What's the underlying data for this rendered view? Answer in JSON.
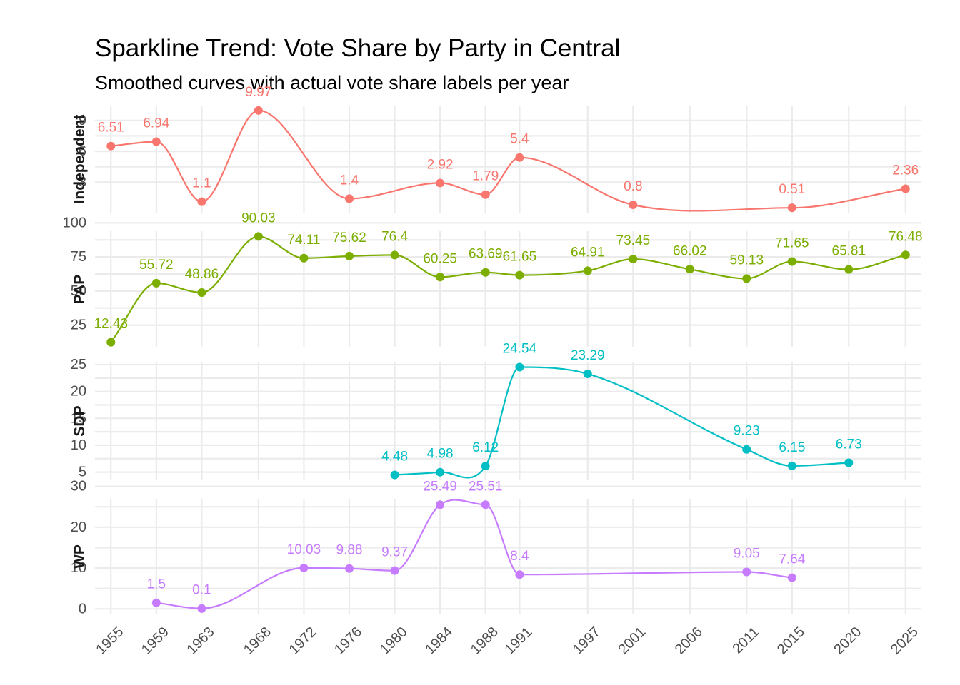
{
  "chart_data": {
    "type": "line",
    "title": "Sparkline Trend: Vote Share by Party in Central",
    "subtitle": "Smoothed curves with actual vote share labels per year",
    "x_ticks": [
      1955,
      1959,
      1963,
      1968,
      1972,
      1976,
      1980,
      1984,
      1988,
      1991,
      1997,
      2001,
      2006,
      2011,
      2015,
      2020,
      2025
    ],
    "xlabel": "",
    "ylabel": "",
    "panels": [
      {
        "name": "Independent",
        "color": "#F8766D",
        "ylim": [
          0.51,
          9.97
        ],
        "yticks": [
          3,
          6,
          9
        ],
        "points": [
          {
            "year": 1955,
            "value": 6.51,
            "label": "6.51"
          },
          {
            "year": 1959,
            "value": 6.94,
            "label": "6.94"
          },
          {
            "year": 1963,
            "value": 1.1,
            "label": "1.1"
          },
          {
            "year": 1968,
            "value": 9.97,
            "label": "9.97"
          },
          {
            "year": 1976,
            "value": 1.4,
            "label": "1.4"
          },
          {
            "year": 1984,
            "value": 2.92,
            "label": "2.92"
          },
          {
            "year": 1988,
            "value": 1.79,
            "label": "1.79"
          },
          {
            "year": 1991,
            "value": 5.4,
            "label": "5.4"
          },
          {
            "year": 2001,
            "value": 0.8,
            "label": "0.8"
          },
          {
            "year": 2015,
            "value": 0.51,
            "label": "0.51"
          },
          {
            "year": 2025,
            "value": 2.36,
            "label": "2.36"
          }
        ]
      },
      {
        "name": "PAP",
        "color": "#7CAE00",
        "ylim": [
          12.43,
          90.03
        ],
        "yticks": [
          25,
          50,
          75,
          100
        ],
        "points": [
          {
            "year": 1955,
            "value": 12.43,
            "label": "12.43"
          },
          {
            "year": 1959,
            "value": 55.72,
            "label": "55.72"
          },
          {
            "year": 1963,
            "value": 48.86,
            "label": "48.86"
          },
          {
            "year": 1968,
            "value": 90.03,
            "label": "90.03"
          },
          {
            "year": 1972,
            "value": 74.11,
            "label": "74.11"
          },
          {
            "year": 1976,
            "value": 75.62,
            "label": "75.62"
          },
          {
            "year": 1980,
            "value": 76.4,
            "label": "76.4"
          },
          {
            "year": 1984,
            "value": 60.25,
            "label": "60.25"
          },
          {
            "year": 1988,
            "value": 63.69,
            "label": "63.69"
          },
          {
            "year": 1991,
            "value": 61.65,
            "label": "61.65"
          },
          {
            "year": 1997,
            "value": 64.91,
            "label": "64.91"
          },
          {
            "year": 2001,
            "value": 73.45,
            "label": "73.45"
          },
          {
            "year": 2006,
            "value": 66.02,
            "label": "66.02"
          },
          {
            "year": 2011,
            "value": 59.13,
            "label": "59.13"
          },
          {
            "year": 2015,
            "value": 71.65,
            "label": "71.65"
          },
          {
            "year": 2020,
            "value": 65.81,
            "label": "65.81"
          },
          {
            "year": 2025,
            "value": 76.48,
            "label": "76.48"
          }
        ]
      },
      {
        "name": "SDP",
        "color": "#00BFC4",
        "ylim": [
          4.48,
          24.54
        ],
        "yticks": [
          5,
          10,
          15,
          20,
          25
        ],
        "points": [
          {
            "year": 1980,
            "value": 4.48,
            "label": "4.48"
          },
          {
            "year": 1984,
            "value": 4.98,
            "label": "4.98"
          },
          {
            "year": 1988,
            "value": 6.12,
            "label": "6.12"
          },
          {
            "year": 1991,
            "value": 24.54,
            "label": "24.54"
          },
          {
            "year": 1997,
            "value": 23.29,
            "label": "23.29"
          },
          {
            "year": 2011,
            "value": 9.23,
            "label": "9.23"
          },
          {
            "year": 2015,
            "value": 6.15,
            "label": "6.15"
          },
          {
            "year": 2020,
            "value": 6.73,
            "label": "6.73"
          }
        ]
      },
      {
        "name": "WP",
        "color": "#C77CFF",
        "ylim": [
          0.1,
          25.51
        ],
        "yticks": [
          0,
          10,
          20,
          30
        ],
        "points": [
          {
            "year": 1959,
            "value": 1.5,
            "label": "1.5"
          },
          {
            "year": 1963,
            "value": 0.1,
            "label": "0.1"
          },
          {
            "year": 1972,
            "value": 10.03,
            "label": "10.03"
          },
          {
            "year": 1976,
            "value": 9.88,
            "label": "9.88"
          },
          {
            "year": 1980,
            "value": 9.37,
            "label": "9.37"
          },
          {
            "year": 1984,
            "value": 25.49,
            "label": "25.49"
          },
          {
            "year": 1988,
            "value": 25.51,
            "label": "25.51"
          },
          {
            "year": 1991,
            "value": 8.4,
            "label": "8.4"
          },
          {
            "year": 2011,
            "value": 9.05,
            "label": "9.05"
          },
          {
            "year": 2015,
            "value": 7.64,
            "label": "7.64"
          }
        ]
      }
    ]
  }
}
